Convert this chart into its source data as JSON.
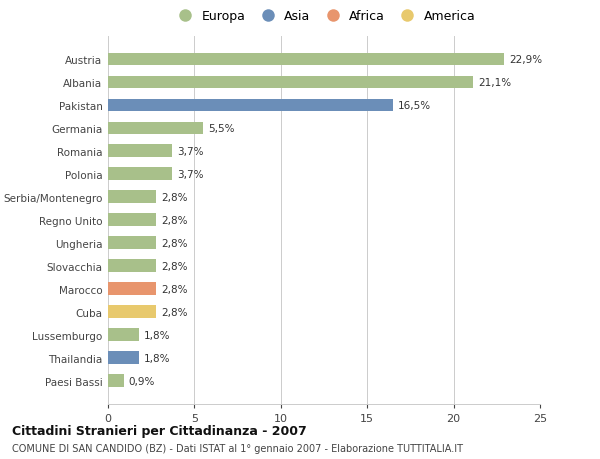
{
  "countries": [
    "Austria",
    "Albania",
    "Pakistan",
    "Germania",
    "Romania",
    "Polonia",
    "Serbia/Montenegro",
    "Regno Unito",
    "Ungheria",
    "Slovacchia",
    "Marocco",
    "Cuba",
    "Lussemburgo",
    "Thailandia",
    "Paesi Bassi"
  ],
  "values": [
    22.9,
    21.1,
    16.5,
    5.5,
    3.7,
    3.7,
    2.8,
    2.8,
    2.8,
    2.8,
    2.8,
    2.8,
    1.8,
    1.8,
    0.9
  ],
  "labels": [
    "22,9%",
    "21,1%",
    "16,5%",
    "5,5%",
    "3,7%",
    "3,7%",
    "2,8%",
    "2,8%",
    "2,8%",
    "2,8%",
    "2,8%",
    "2,8%",
    "1,8%",
    "1,8%",
    "0,9%"
  ],
  "continents": [
    "Europa",
    "Europa",
    "Asia",
    "Europa",
    "Europa",
    "Europa",
    "Europa",
    "Europa",
    "Europa",
    "Europa",
    "Africa",
    "America",
    "Europa",
    "Asia",
    "Europa"
  ],
  "colors": {
    "Europa": "#a8c08a",
    "Asia": "#6b8eb8",
    "Africa": "#e8956d",
    "America": "#e8c96d"
  },
  "xlim": [
    0,
    25
  ],
  "xticks": [
    0,
    5,
    10,
    15,
    20,
    25
  ],
  "title": "Cittadini Stranieri per Cittadinanza - 2007",
  "subtitle": "COMUNE DI SAN CANDIDO (BZ) - Dati ISTAT al 1° gennaio 2007 - Elaborazione TUTTITALIA.IT",
  "background_color": "#ffffff",
  "grid_color": "#cccccc",
  "legend_order": [
    "Europa",
    "Asia",
    "Africa",
    "America"
  ]
}
